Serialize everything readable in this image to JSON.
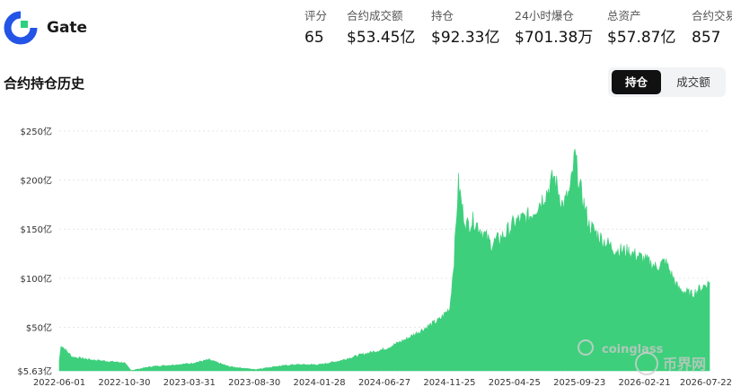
{
  "exchange": {
    "name": "Gate",
    "logo_icon": "gate-logo-icon"
  },
  "stats": [
    {
      "label": "评分",
      "value": "65"
    },
    {
      "label": "合约成交额",
      "value": "$53.45亿"
    },
    {
      "label": "持仓",
      "value": "$92.33亿"
    },
    {
      "label": "24小时爆仓",
      "value": "$701.38万"
    },
    {
      "label": "总资产",
      "value": "$57.87亿"
    },
    {
      "label": "合约交易",
      "value": "857"
    }
  ],
  "section": {
    "title": "合约持仓历史"
  },
  "toggle": {
    "active_label": "持仓",
    "inactive_label": "成交额"
  },
  "colors": {
    "series": "#3ecf7c",
    "grid": "#e6e6e6",
    "axis_text": "#333333",
    "toggle_active_bg": "#111111"
  },
  "chart_data": {
    "type": "area",
    "title": "",
    "xlabel": "",
    "ylabel": "",
    "y_tick_labels": [
      "$250亿",
      "$200亿",
      "$150亿",
      "$100亿",
      "$50亿",
      "$5.63亿"
    ],
    "y_ticks": [
      250,
      200,
      150,
      100,
      50,
      5.63
    ],
    "ylim": [
      5.63,
      260
    ],
    "grid": true,
    "legend": "none",
    "x_tick_labels": [
      "2022-06-01",
      "2022-10-30",
      "2023-03-31",
      "2023-08-30",
      "2024-01-28",
      "2024-06-27",
      "2024-11-25",
      "2025-04-25",
      "2025-09-23",
      "2026-02-21",
      "2026-07-22"
    ],
    "series": [
      {
        "x": [
          "2022-06-01",
          "2022-06-05",
          "2022-07-01",
          "2022-08-15",
          "2022-10-01",
          "2022-10-30",
          "2022-11-15",
          "2023-01-01",
          "2023-03-31",
          "2023-05-15",
          "2023-07-01",
          "2023-08-30",
          "2023-10-15",
          "2023-12-01",
          "2024-01-28",
          "2024-03-15",
          "2024-05-01",
          "2024-06-27",
          "2024-08-15",
          "2024-10-01",
          "2024-11-01",
          "2024-11-25",
          "2024-12-05",
          "2024-12-15",
          "2024-12-25",
          "2025-01-03",
          "2025-01-20",
          "2025-02-10",
          "2025-03-01",
          "2025-04-01",
          "2025-04-25",
          "2025-06-01",
          "2025-07-10",
          "2025-07-25",
          "2025-08-15",
          "2025-09-01",
          "2025-09-12",
          "2025-09-23",
          "2025-10-15",
          "2025-11-15",
          "2025-12-15",
          "2026-01-15",
          "2026-02-21",
          "2026-03-20",
          "2026-04-10",
          "2026-05-10",
          "2026-06-10",
          "2026-07-10",
          "2026-07-22"
        ],
        "values": [
          16,
          32,
          20,
          17,
          15,
          14,
          6,
          10,
          13,
          17,
          10,
          7,
          10,
          12,
          12,
          16,
          22,
          28,
          38,
          50,
          58,
          70,
          120,
          198,
          170,
          155,
          160,
          148,
          135,
          145,
          158,
          165,
          190,
          205,
          175,
          190,
          227,
          195,
          155,
          140,
          130,
          128,
          120,
          112,
          118,
          90,
          84,
          93,
          96
        ]
      }
    ]
  },
  "watermarks": [
    "coinglass",
    "币界网"
  ]
}
